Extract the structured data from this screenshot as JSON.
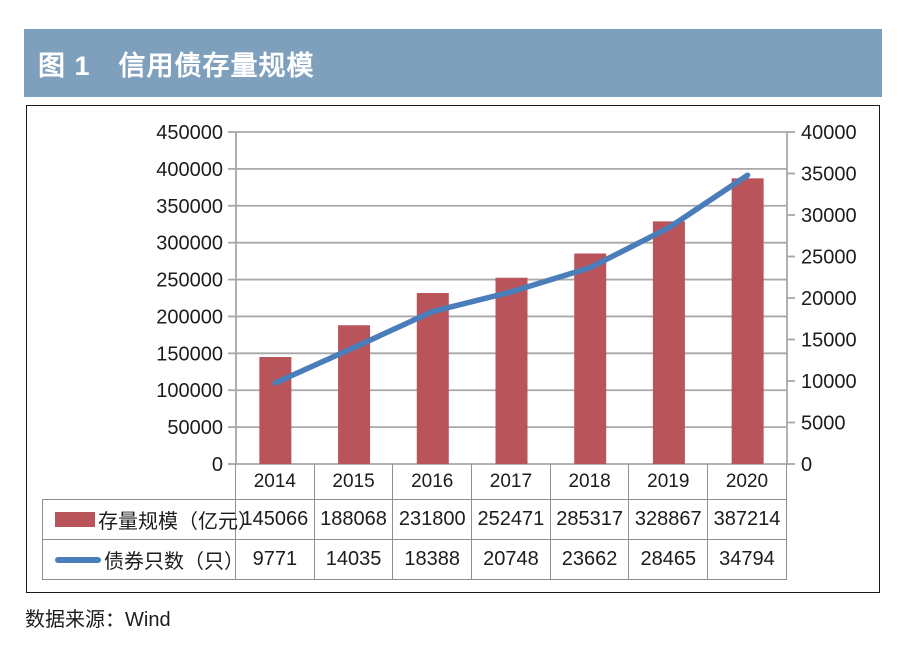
{
  "figure": {
    "title": "图 1　信用债存量规模",
    "source": "数据来源：Wind"
  },
  "theme": {
    "header_bg": "#7ea0bd",
    "header_text": "#ffffff",
    "bar_color": "#b8545a",
    "line_color": "#4a7ebb",
    "grid_color": "#a8a8a8",
    "table_border_color": "#8f8f8f",
    "frame_color": "#1a1a1a",
    "text_color": "#1c1c1c"
  },
  "chart_data": {
    "type": "bar",
    "title": "图 1　信用债存量规模",
    "categories": [
      "2014",
      "2015",
      "2016",
      "2017",
      "2018",
      "2019",
      "2020"
    ],
    "series": [
      {
        "name": "存量规模（亿元）",
        "type": "bar",
        "axis": "left",
        "color": "#b8545a",
        "values": [
          145066,
          188068,
          231800,
          252471,
          285317,
          328867,
          387214
        ]
      },
      {
        "name": "债券只数（只）",
        "type": "line",
        "axis": "right",
        "color": "#4a7ebb",
        "values": [
          9771,
          14035,
          18388,
          20748,
          23662,
          28465,
          34794
        ]
      }
    ],
    "left_axis": {
      "min": 0,
      "max": 450000,
      "step": 50000
    },
    "right_axis": {
      "min": 0,
      "max": 40000,
      "step": 5000
    },
    "grid": true,
    "legend_position": "data-table-left",
    "xlabel": "",
    "ylabel_left": "",
    "ylabel_right": ""
  }
}
